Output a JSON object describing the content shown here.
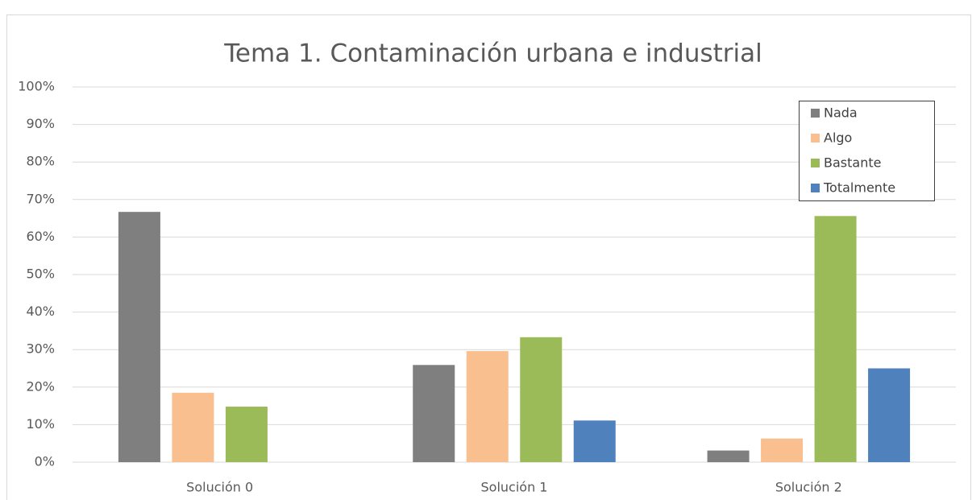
{
  "chart_data": {
    "type": "bar",
    "title": "Tema 1. Contaminación urbana e industrial",
    "categories": [
      "Solución 0",
      "Solución 1",
      "Solución 2"
    ],
    "series": [
      {
        "name": "Nada",
        "color": "#7f7f7f",
        "values": [
          66.7,
          25.9,
          3.1
        ]
      },
      {
        "name": "Algo",
        "color": "#f9bf8f",
        "values": [
          18.5,
          29.6,
          6.3
        ]
      },
      {
        "name": "Bastante",
        "color": "#9bbb59",
        "values": [
          14.8,
          33.3,
          65.6
        ]
      },
      {
        "name": "Totalmente",
        "color": "#4f81bd",
        "values": [
          0,
          11.1,
          25.0
        ]
      }
    ],
    "ylim": [
      0,
      100
    ],
    "yticks": [
      {
        "value": 0,
        "label": "0%"
      },
      {
        "value": 10,
        "label": "10%"
      },
      {
        "value": 20,
        "label": "20%"
      },
      {
        "value": 30,
        "label": "30%"
      },
      {
        "value": 40,
        "label": "40%"
      },
      {
        "value": 50,
        "label": "50%"
      },
      {
        "value": 60,
        "label": "60%"
      },
      {
        "value": 70,
        "label": "70%"
      },
      {
        "value": 80,
        "label": "80%"
      },
      {
        "value": 90,
        "label": "90%"
      },
      {
        "value": 100,
        "label": "100%"
      }
    ],
    "grid": true,
    "legend": "top-right"
  }
}
